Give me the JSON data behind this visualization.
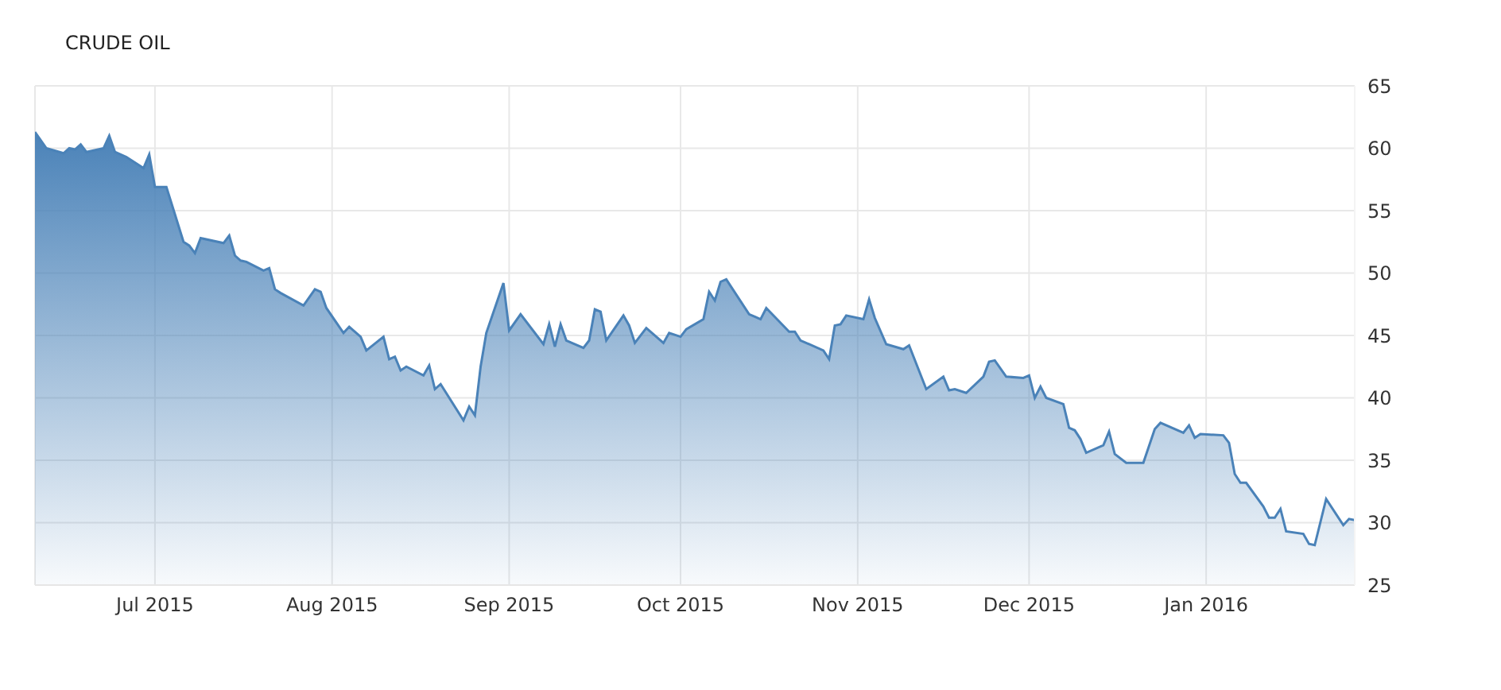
{
  "chart_data": {
    "type": "area",
    "title": "CRUDE OIL",
    "x": [
      "2015-06-10",
      "2015-06-12",
      "2015-06-15",
      "2015-06-16",
      "2015-06-17",
      "2015-06-18",
      "2015-06-19",
      "2015-06-22",
      "2015-06-23",
      "2015-06-24",
      "2015-06-26",
      "2015-06-29",
      "2015-06-30",
      "2015-07-01",
      "2015-07-03",
      "2015-07-06",
      "2015-07-07",
      "2015-07-08",
      "2015-07-09",
      "2015-07-13",
      "2015-07-14",
      "2015-07-15",
      "2015-07-16",
      "2015-07-17",
      "2015-07-20",
      "2015-07-21",
      "2015-07-22",
      "2015-07-23",
      "2015-07-27",
      "2015-07-29",
      "2015-07-30",
      "2015-07-31",
      "2015-08-03",
      "2015-08-04",
      "2015-08-06",
      "2015-08-07",
      "2015-08-10",
      "2015-08-11",
      "2015-08-12",
      "2015-08-13",
      "2015-08-14",
      "2015-08-17",
      "2015-08-18",
      "2015-08-19",
      "2015-08-20",
      "2015-08-24",
      "2015-08-25",
      "2015-08-26",
      "2015-08-27",
      "2015-08-28",
      "2015-08-31",
      "2015-09-01",
      "2015-09-03",
      "2015-09-07",
      "2015-09-08",
      "2015-09-09",
      "2015-09-10",
      "2015-09-11",
      "2015-09-14",
      "2015-09-15",
      "2015-09-16",
      "2015-09-17",
      "2015-09-18",
      "2015-09-21",
      "2015-09-22",
      "2015-09-23",
      "2015-09-25",
      "2015-09-28",
      "2015-09-29",
      "2015-10-01",
      "2015-10-02",
      "2015-10-05",
      "2015-10-06",
      "2015-10-07",
      "2015-10-08",
      "2015-10-09",
      "2015-10-13",
      "2015-10-14",
      "2015-10-15",
      "2015-10-16",
      "2015-10-20",
      "2015-10-21",
      "2015-10-22",
      "2015-10-26",
      "2015-10-27",
      "2015-10-28",
      "2015-10-29",
      "2015-10-30",
      "2015-11-02",
      "2015-11-03",
      "2015-11-04",
      "2015-11-06",
      "2015-11-09",
      "2015-11-10",
      "2015-11-13",
      "2015-11-16",
      "2015-11-17",
      "2015-11-18",
      "2015-11-20",
      "2015-11-23",
      "2015-11-24",
      "2015-11-25",
      "2015-11-27",
      "2015-11-30",
      "2015-12-01",
      "2015-12-02",
      "2015-12-03",
      "2015-12-04",
      "2015-12-07",
      "2015-12-08",
      "2015-12-09",
      "2015-12-10",
      "2015-12-11",
      "2015-12-14",
      "2015-12-15",
      "2015-12-16",
      "2015-12-18",
      "2015-12-21",
      "2015-12-23",
      "2015-12-24",
      "2015-12-28",
      "2015-12-29",
      "2015-12-30",
      "2015-12-31",
      "2016-01-04",
      "2016-01-05",
      "2016-01-06",
      "2016-01-07",
      "2016-01-08",
      "2016-01-11",
      "2016-01-12",
      "2016-01-13",
      "2016-01-14",
      "2016-01-15",
      "2016-01-18",
      "2016-01-19",
      "2016-01-20",
      "2016-01-22",
      "2016-01-25",
      "2016-01-26",
      "2016-01-27"
    ],
    "series": [
      {
        "color": "#4a82b8",
        "values": [
          61.3,
          60.0,
          59.6,
          60.0,
          59.9,
          60.3,
          59.7,
          60.0,
          61.0,
          59.7,
          59.3,
          58.4,
          59.5,
          56.9,
          56.9,
          52.5,
          52.2,
          51.6,
          52.8,
          52.4,
          53.0,
          51.4,
          51.0,
          50.9,
          50.2,
          50.4,
          48.7,
          48.4,
          47.4,
          48.7,
          48.5,
          47.2,
          45.2,
          45.7,
          44.9,
          43.8,
          44.9,
          43.1,
          43.3,
          42.2,
          42.5,
          41.8,
          42.6,
          40.7,
          41.1,
          38.2,
          39.3,
          38.6,
          42.5,
          45.2,
          49.2,
          45.4,
          46.7,
          44.3,
          45.9,
          44.1,
          45.9,
          44.6,
          44.0,
          44.6,
          47.1,
          46.9,
          44.6,
          46.6,
          45.8,
          44.4,
          45.6,
          44.4,
          45.2,
          44.9,
          45.5,
          46.3,
          48.5,
          47.8,
          49.3,
          49.5,
          46.7,
          46.5,
          46.3,
          47.2,
          45.3,
          45.3,
          44.6,
          43.8,
          43.1,
          45.8,
          45.9,
          46.6,
          46.3,
          47.9,
          46.4,
          44.3,
          43.9,
          44.2,
          40.7,
          41.7,
          40.6,
          40.7,
          40.4,
          41.7,
          42.9,
          43.0,
          41.7,
          41.6,
          41.8,
          40.0,
          40.9,
          40.0,
          39.5,
          37.6,
          37.4,
          36.7,
          35.6,
          36.2,
          37.3,
          35.5,
          34.8,
          34.8,
          37.5,
          38.0,
          37.2,
          37.8,
          36.8,
          37.1,
          37.0,
          36.4,
          33.9,
          33.2,
          33.2,
          31.3,
          30.4,
          30.4,
          31.1,
          29.3,
          29.1,
          28.3,
          28.2,
          31.9,
          29.8,
          30.3,
          30.2
        ]
      }
    ],
    "xlim": [
      "2015-06-10",
      "2016-01-27"
    ],
    "xticks": [
      {
        "value": "2015-07-01",
        "label": "Jul 2015"
      },
      {
        "value": "2015-08-01",
        "label": "Aug 2015"
      },
      {
        "value": "2015-09-01",
        "label": "Sep 2015"
      },
      {
        "value": "2015-10-01",
        "label": "Oct 2015"
      },
      {
        "value": "2015-11-01",
        "label": "Nov 2015"
      },
      {
        "value": "2015-12-01",
        "label": "Dec 2015"
      },
      {
        "value": "2016-01-01",
        "label": "Jan 2016"
      }
    ],
    "ylim": [
      25,
      65
    ],
    "yticks": [
      25,
      30,
      35,
      40,
      45,
      50,
      55,
      60,
      65
    ],
    "grid": true,
    "legend": false,
    "marker": "none",
    "line_style": "solid"
  }
}
